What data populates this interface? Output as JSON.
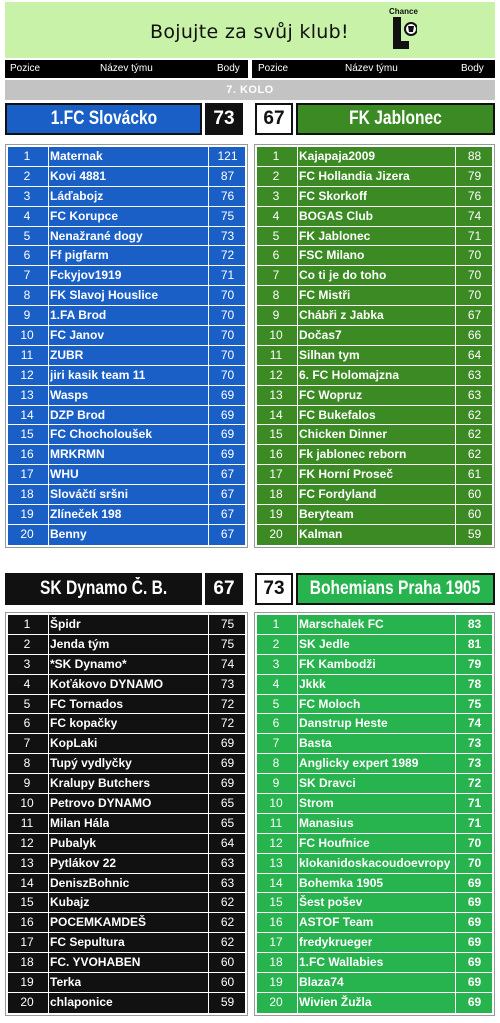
{
  "banner": {
    "text": "Bojujte za svůj klub!",
    "logo_word": "Chance"
  },
  "columns": {
    "pos": "Pozice",
    "team": "Název týmu",
    "pts": "Body"
  },
  "round": "7. KOLO",
  "matches": [
    {
      "home": {
        "name": "1.FC Slovácko",
        "score": "73",
        "color": "#1a5fc6",
        "rows": [
          [
            "1",
            "Maternak",
            "121"
          ],
          [
            "2",
            "Kovi 4881",
            "87"
          ],
          [
            "3",
            "Láďabojz",
            "76"
          ],
          [
            "4",
            "FC Korupce",
            "75"
          ],
          [
            "5",
            "Nenažrané dogy",
            "73"
          ],
          [
            "6",
            "Ff pigfarm",
            "72"
          ],
          [
            "7",
            "Fckyjov1919",
            "71"
          ],
          [
            "8",
            "FK Slavoj Houslice",
            "70"
          ],
          [
            "9",
            "1.FA Brod",
            "70"
          ],
          [
            "10",
            "FC Janov",
            "70"
          ],
          [
            "11",
            "ZUBR",
            "70"
          ],
          [
            "12",
            "jiri kasik team 11",
            "70"
          ],
          [
            "13",
            "Wasps",
            "69"
          ],
          [
            "14",
            "DZP Brod",
            "69"
          ],
          [
            "15",
            "FC Chocholoušek",
            "69"
          ],
          [
            "16",
            "MRKRMN",
            "69"
          ],
          [
            "17",
            "WHU",
            "67"
          ],
          [
            "18",
            "Slováčtí sršni",
            "67"
          ],
          [
            "19",
            "Zlíneček 198",
            "67"
          ],
          [
            "20",
            "Benny",
            "67"
          ]
        ]
      },
      "away": {
        "name": "FK Jablonec",
        "score": "67",
        "color": "#3b8a24",
        "rows": [
          [
            "1",
            "Kajapaja2009",
            "88"
          ],
          [
            "2",
            "FC Hollandia Jizera",
            "79"
          ],
          [
            "3",
            "FC Skorkoff",
            "76"
          ],
          [
            "4",
            "BOGAS Club",
            "74"
          ],
          [
            "5",
            "FK Jablonec",
            "71"
          ],
          [
            "6",
            "FSC Milano",
            "70"
          ],
          [
            "7",
            "Co ti je do toho",
            "70"
          ],
          [
            "8",
            "FC Mistři",
            "70"
          ],
          [
            "9",
            "Chábři z Jabka",
            "67"
          ],
          [
            "10",
            "Dočas7",
            "66"
          ],
          [
            "11",
            "Silhan tym",
            "64"
          ],
          [
            "12",
            "6. FC Holomajzna",
            "63"
          ],
          [
            "13",
            "FC Wopruz",
            "63"
          ],
          [
            "14",
            "FC Bukefalos",
            "62"
          ],
          [
            "15",
            "Chicken Dinner",
            "62"
          ],
          [
            "16",
            "Fk jablonec reborn",
            "62"
          ],
          [
            "17",
            "FK Horní Proseč",
            "61"
          ],
          [
            "18",
            "FC Fordyland",
            "60"
          ],
          [
            "19",
            "Beryteam",
            "60"
          ],
          [
            "20",
            "Kalman",
            "59"
          ]
        ]
      }
    },
    {
      "home": {
        "name": "SK Dynamo Č. B.",
        "score": "67",
        "color": "#111111",
        "rows": [
          [
            "1",
            "Špidr",
            "75"
          ],
          [
            "2",
            "Jenda tým",
            "75"
          ],
          [
            "3",
            "*SK Dynamo*",
            "74"
          ],
          [
            "4",
            "Koťákovo DYNAMO",
            "73"
          ],
          [
            "5",
            "FC Tornados",
            "72"
          ],
          [
            "6",
            "FC kopačky",
            "72"
          ],
          [
            "7",
            "KopLaki",
            "69"
          ],
          [
            "8",
            "Tupý vydlyčky",
            "69"
          ],
          [
            "9",
            "Kralupy Butchers",
            "69"
          ],
          [
            "10",
            "Petrovo DYNAMO",
            "65"
          ],
          [
            "11",
            "Milan Hála",
            "65"
          ],
          [
            "12",
            "Pubalyk",
            "64"
          ],
          [
            "13",
            "Pytlákov 22",
            "63"
          ],
          [
            "14",
            "DeniszBohnic",
            "63"
          ],
          [
            "15",
            "Kubajz",
            "62"
          ],
          [
            "16",
            "POCEMKAMDEŠ",
            "62"
          ],
          [
            "17",
            "FC Sepultura",
            "62"
          ],
          [
            "18",
            "FC. YVOHABEN",
            "60"
          ],
          [
            "19",
            "Terka",
            "60"
          ],
          [
            "20",
            "chlaponice",
            "59"
          ]
        ]
      },
      "away": {
        "name": "Bohemians Praha 1905",
        "score": "73",
        "color": "#27b34e",
        "rows": [
          [
            "1",
            "Marschalek FC",
            "83"
          ],
          [
            "2",
            "SK Jedle",
            "81"
          ],
          [
            "3",
            "FK Kambodži",
            "79"
          ],
          [
            "4",
            "Jkkk",
            "78"
          ],
          [
            "5",
            "FC Moloch",
            "75"
          ],
          [
            "6",
            "Danstrup Heste",
            "74"
          ],
          [
            "7",
            "Basta",
            "73"
          ],
          [
            "8",
            "Anglicky expert 1989",
            "73"
          ],
          [
            "9",
            "SK Dravci",
            "72"
          ],
          [
            "10",
            "Strom",
            "71"
          ],
          [
            "11",
            "Manasius",
            "71"
          ],
          [
            "12",
            "FC Houfnice",
            "70"
          ],
          [
            "13",
            "klokanidoskacoudoevropy",
            "70"
          ],
          [
            "14",
            "Bohemka 1905",
            "69"
          ],
          [
            "15",
            "Šest pošev",
            "69"
          ],
          [
            "16",
            "ASTOF Team",
            "69"
          ],
          [
            "17",
            "fredykrueger",
            "69"
          ],
          [
            "18",
            "1.FC Wallabies",
            "69"
          ],
          [
            "19",
            "Blaza74",
            "69"
          ],
          [
            "20",
            "Wivien Žužla",
            "69"
          ]
        ]
      }
    }
  ]
}
